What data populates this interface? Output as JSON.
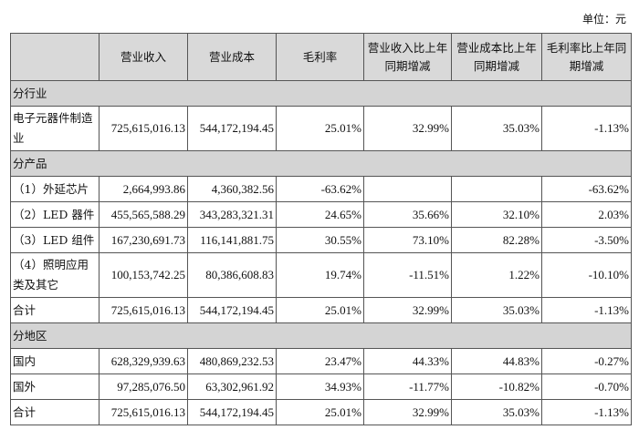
{
  "unit_label": "单位：元",
  "headers": [
    "",
    "营业收入",
    "营业成本",
    "毛利率",
    "营业收入比上年同期增减",
    "营业成本比上年同期增减",
    "毛利率比上年同期增减"
  ],
  "rows": [
    {
      "section": "分行业"
    },
    {
      "cells": [
        "电子元器件制造业",
        "725,615,016.13",
        "544,172,194.45",
        "25.01%",
        "32.99%",
        "35.03%",
        "-1.13%"
      ],
      "tall": true
    },
    {
      "section": "分产品"
    },
    {
      "cells": [
        "（1）外延芯片",
        "2,664,993.86",
        "4,360,382.56",
        "-63.62%",
        "",
        "",
        "-63.62%"
      ]
    },
    {
      "cells": [
        "（2）LED 器件",
        "455,565,588.29",
        "343,283,321.31",
        "24.65%",
        "35.66%",
        "32.10%",
        "2.03%"
      ]
    },
    {
      "cells": [
        "（3）LED 组件",
        "167,230,691.73",
        "116,141,881.75",
        "30.55%",
        "73.10%",
        "82.28%",
        "-3.50%"
      ]
    },
    {
      "cells": [
        "（4）照明应用类及其它",
        "100,153,742.25",
        "80,386,608.83",
        "19.74%",
        "-11.51%",
        "1.22%",
        "-10.10%"
      ],
      "tall": true
    },
    {
      "cells": [
        "合计",
        "725,615,016.13",
        "544,172,194.45",
        "25.01%",
        "32.99%",
        "35.03%",
        "-1.13%"
      ]
    },
    {
      "section": "分地区"
    },
    {
      "cells": [
        "国内",
        "628,329,939.63",
        "480,869,232.53",
        "23.47%",
        "44.33%",
        "44.83%",
        "-0.27%"
      ]
    },
    {
      "cells": [
        "国外",
        "97,285,076.50",
        "63,302,961.92",
        "34.93%",
        "-11.77%",
        "-10.82%",
        "-0.70%"
      ]
    },
    {
      "cells": [
        "合计",
        "725,615,016.13",
        "544,172,194.45",
        "25.01%",
        "32.99%",
        "35.03%",
        "-1.13%"
      ]
    }
  ]
}
